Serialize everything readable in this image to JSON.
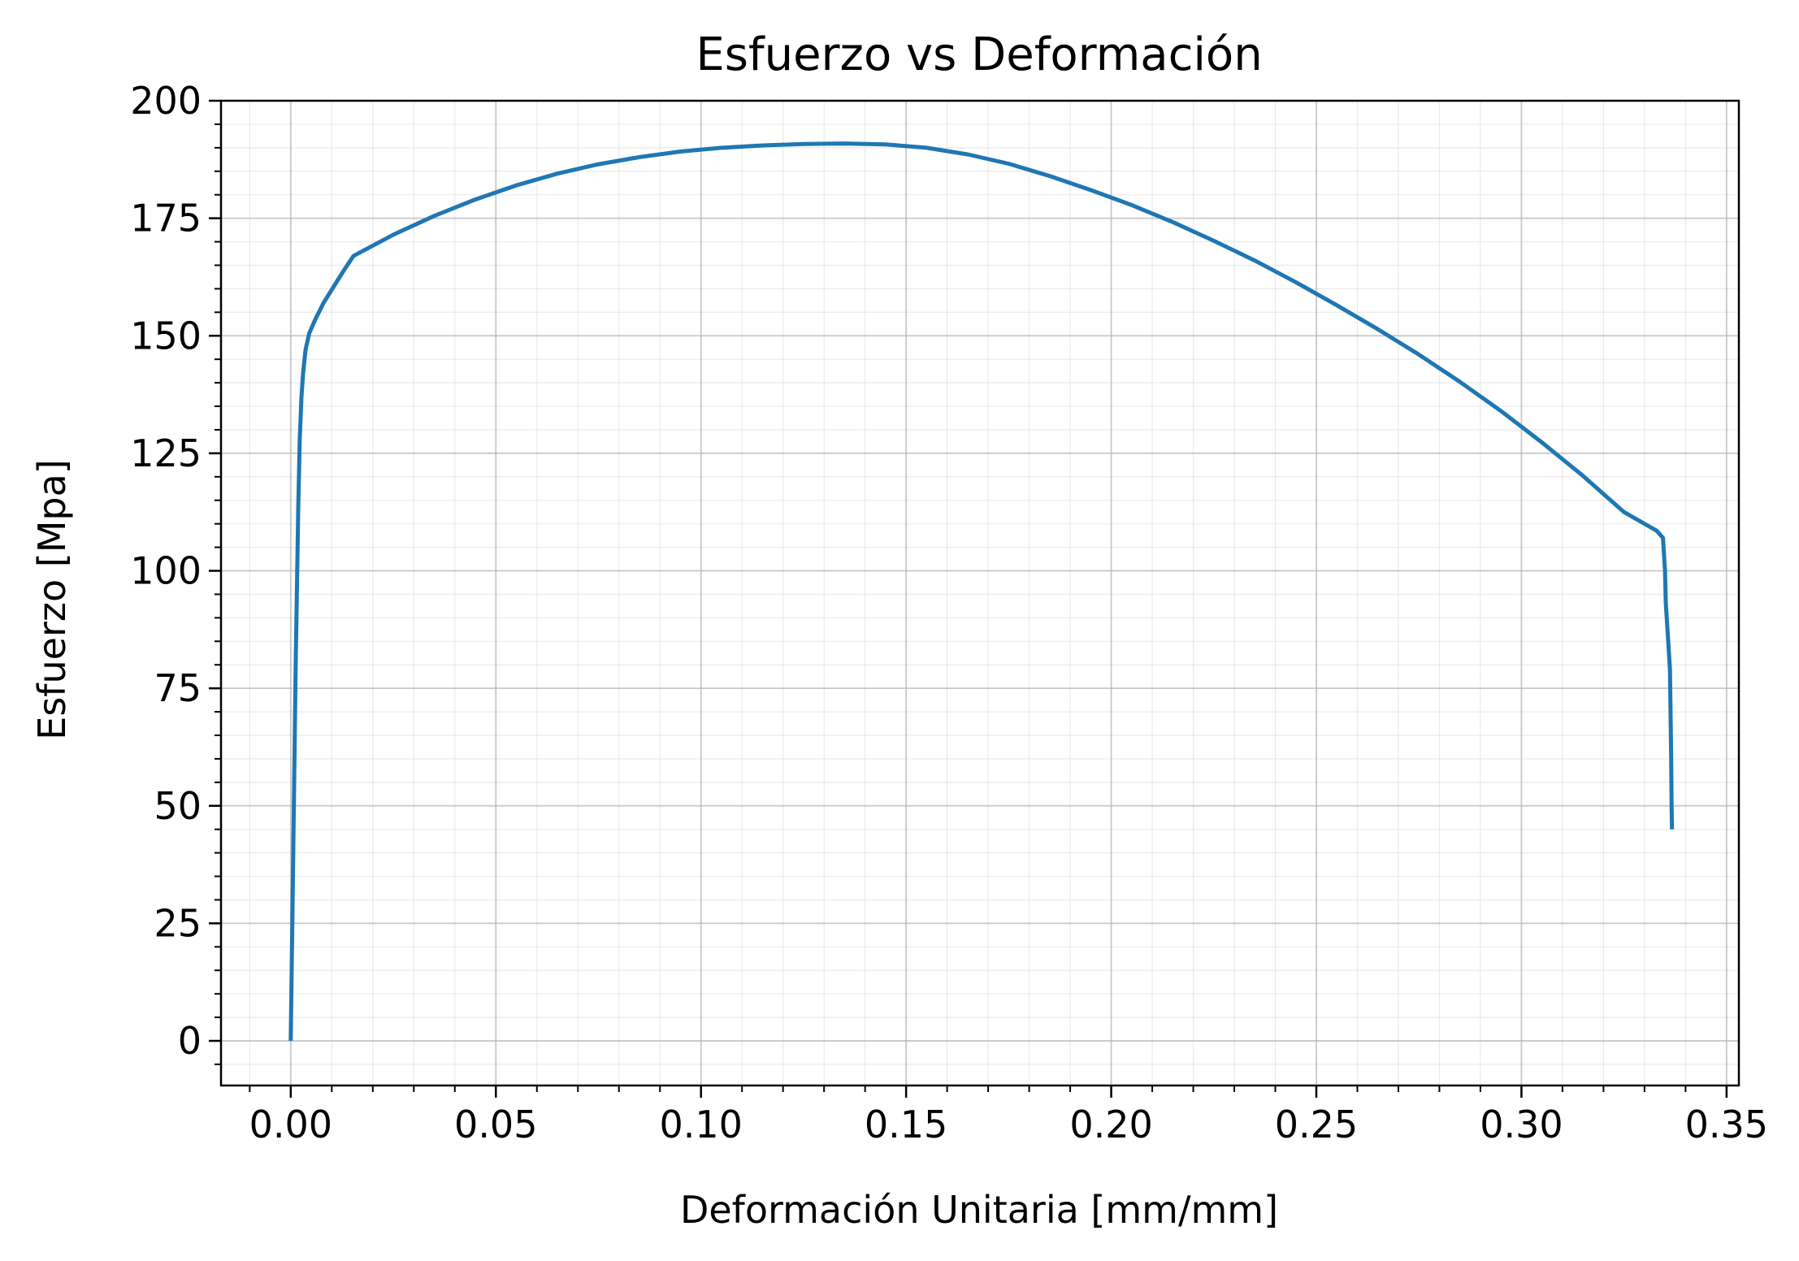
{
  "chart_data": {
    "type": "line",
    "title": "Esfuerzo vs Deformación",
    "xlabel": "Deformación Unitaria [mm/mm]",
    "ylabel": "Esfuerzo [Mpa]",
    "xlim": [
      -0.017,
      0.353
    ],
    "ylim": [
      -9.5,
      200
    ],
    "xticks": [
      0.0,
      0.05,
      0.1,
      0.15,
      0.2,
      0.25,
      0.3,
      0.35
    ],
    "xtick_labels": [
      "0.00",
      "0.05",
      "0.10",
      "0.15",
      "0.20",
      "0.25",
      "0.30",
      "0.35"
    ],
    "yticks": [
      0,
      25,
      50,
      75,
      100,
      125,
      150,
      175,
      200
    ],
    "ytick_labels": [
      "0",
      "25",
      "50",
      "75",
      "100",
      "125",
      "150",
      "175",
      "200"
    ],
    "x_minor_step": 0.01,
    "y_minor_step": 5,
    "grid": true,
    "minor_grid": true,
    "series": [
      {
        "color": "#1f77b4",
        "x": [
          0.0,
          0.0006,
          0.0012,
          0.0018,
          0.0022,
          0.0026,
          0.003,
          0.0036,
          0.0045,
          0.006,
          0.008,
          0.0105,
          0.013,
          0.0153,
          0.025,
          0.035,
          0.045,
          0.055,
          0.065,
          0.075,
          0.085,
          0.095,
          0.105,
          0.115,
          0.125,
          0.135,
          0.145,
          0.155,
          0.165,
          0.175,
          0.185,
          0.195,
          0.205,
          0.215,
          0.225,
          0.235,
          0.245,
          0.255,
          0.265,
          0.275,
          0.285,
          0.295,
          0.305,
          0.315,
          0.325,
          0.333,
          0.3345,
          0.335,
          0.3352,
          0.3357,
          0.3362,
          0.3365,
          0.3366,
          0.3367
        ],
        "y": [
          0,
          40,
          80,
          112,
          128,
          137,
          142,
          147,
          150.5,
          153.5,
          157,
          160.5,
          164,
          167,
          171.5,
          175.5,
          179,
          182,
          184.5,
          186.5,
          188,
          189.2,
          190,
          190.5,
          190.8,
          190.9,
          190.7,
          190,
          188.6,
          186.6,
          184,
          181,
          177.8,
          174.2,
          170.2,
          166,
          161.4,
          156.5,
          151.4,
          146,
          140.2,
          134,
          127.3,
          120.2,
          112.5,
          108.5,
          107,
          100,
          93,
          86,
          79,
          60,
          50,
          45
        ]
      }
    ]
  }
}
